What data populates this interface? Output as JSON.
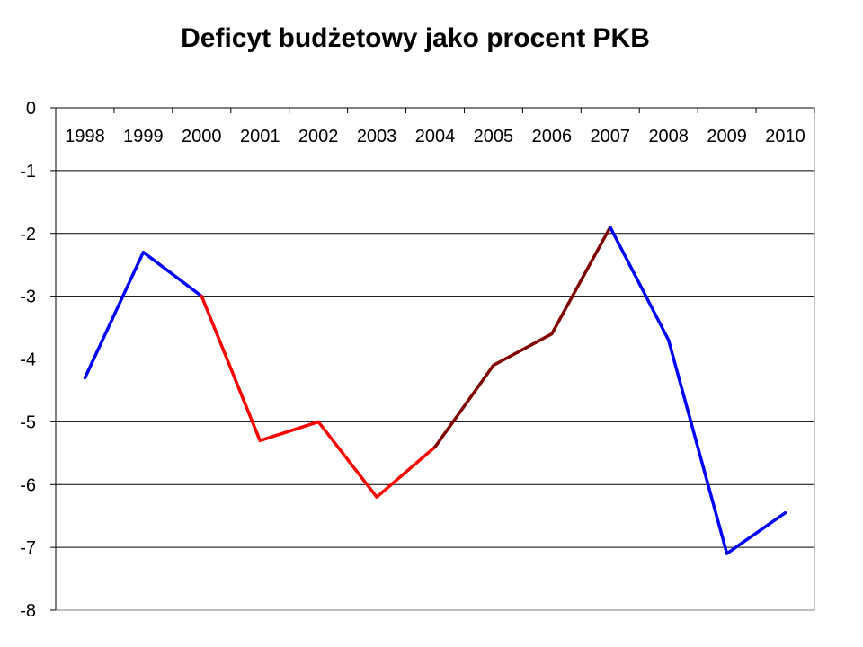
{
  "chart_data": {
    "type": "line",
    "title": "Deficyt budżetowy jako procent PKB",
    "xlabel": "",
    "ylabel": "",
    "categories": [
      "1998",
      "1999",
      "2000",
      "2001",
      "2002",
      "2003",
      "2004",
      "2005",
      "2006",
      "2007",
      "2008",
      "2009",
      "2010"
    ],
    "values": [
      -4.3,
      -2.3,
      -3.0,
      -5.3,
      -5.0,
      -6.2,
      -5.4,
      -4.1,
      -3.6,
      -1.9,
      -3.7,
      -7.1,
      -6.45
    ],
    "ylim": [
      -8,
      0
    ],
    "y_ticks": [
      "0",
      "-1",
      "-2",
      "-3",
      "-4",
      "-5",
      "-6",
      "-7",
      "-8"
    ],
    "category_labels_position": "top",
    "grid": true,
    "legend": "none",
    "segments": [
      {
        "from": "1998",
        "to": "2000",
        "color": "#0000ff"
      },
      {
        "from": "2000",
        "to": "2004",
        "color": "#ff0000"
      },
      {
        "from": "2004",
        "to": "2007",
        "color": "#800000"
      },
      {
        "from": "2007",
        "to": "2010",
        "color": "#0000ff"
      }
    ]
  }
}
